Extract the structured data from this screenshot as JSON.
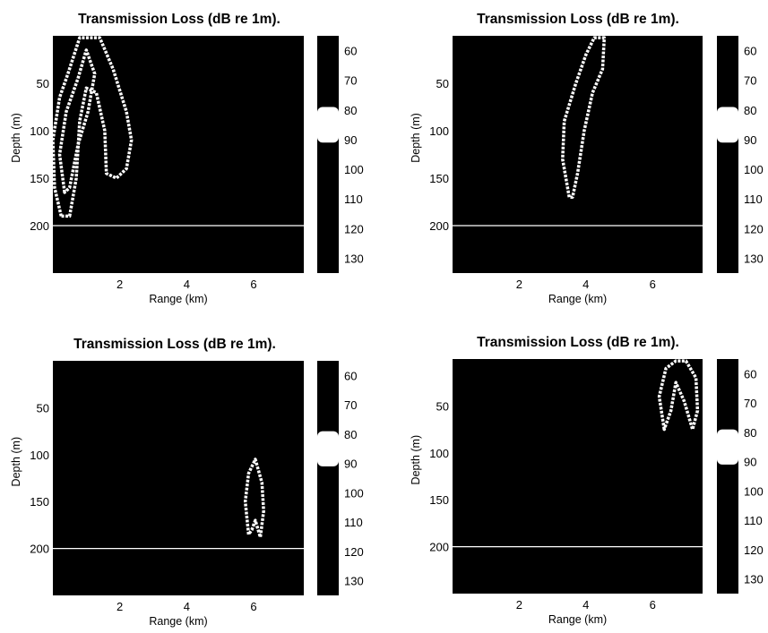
{
  "figure": {
    "panels": [
      {
        "title": "Transmission Loss (dB re 1m)."
      },
      {
        "title": "Transmission Loss (dB re 1m)."
      },
      {
        "title": "Transmission Loss (dB re 1m)."
      },
      {
        "title": "Transmission Loss (dB re 1m)."
      }
    ]
  },
  "colors": {
    "background": "#000000",
    "contour": "#ffffff",
    "seafloor_line": "#ffffff",
    "colorbar_high": "#ffffff"
  },
  "chart_data": [
    {
      "type": "heatmap",
      "title": "Transmission Loss (dB re 1m).",
      "xlabel": "Range (km)",
      "ylabel": "Depth (m)",
      "xlim": [
        0,
        7.5
      ],
      "ylim": [
        250,
        0
      ],
      "xticks": [
        2,
        4,
        6
      ],
      "yticks": [
        50,
        100,
        150,
        200
      ],
      "colorbar_ticks": [
        60,
        70,
        80,
        90,
        100,
        110,
        120,
        130
      ],
      "colorbar_range": [
        55,
        135
      ],
      "seafloor_depth": 200,
      "contour_outlines": [
        [
          [
            0.25,
            190
          ],
          [
            0.05,
            160
          ],
          [
            0.0,
            110
          ],
          [
            0.2,
            65
          ],
          [
            0.45,
            40
          ],
          [
            0.8,
            2
          ],
          [
            1.4,
            2
          ],
          [
            1.8,
            35
          ],
          [
            2.2,
            80
          ],
          [
            2.35,
            110
          ],
          [
            2.2,
            140
          ],
          [
            1.9,
            150
          ],
          [
            1.6,
            145
          ],
          [
            1.55,
            100
          ],
          [
            1.3,
            60
          ],
          [
            1.0,
            55
          ],
          [
            0.8,
            90
          ],
          [
            0.7,
            150
          ],
          [
            0.5,
            190
          ]
        ],
        [
          [
            0.35,
            165
          ],
          [
            0.2,
            125
          ],
          [
            0.4,
            80
          ],
          [
            0.75,
            45
          ],
          [
            1.0,
            15
          ],
          [
            1.25,
            40
          ],
          [
            1.05,
            80
          ],
          [
            0.75,
            115
          ],
          [
            0.5,
            160
          ]
        ]
      ]
    },
    {
      "type": "heatmap",
      "title": "Transmission Loss (dB re 1m).",
      "xlabel": "Range (km)",
      "ylabel": "Depth (m)",
      "xlim": [
        0,
        7.5
      ],
      "ylim": [
        250,
        0
      ],
      "xticks": [
        2,
        4,
        6
      ],
      "yticks": [
        50,
        100,
        150,
        200
      ],
      "colorbar_ticks": [
        60,
        70,
        80,
        90,
        100,
        110,
        120,
        130
      ],
      "colorbar_range": [
        55,
        135
      ],
      "seafloor_depth": 200,
      "contour_outlines": [
        [
          [
            3.5,
            170
          ],
          [
            3.3,
            130
          ],
          [
            3.35,
            90
          ],
          [
            3.7,
            50
          ],
          [
            4.0,
            20
          ],
          [
            4.25,
            2
          ],
          [
            4.55,
            2
          ],
          [
            4.5,
            35
          ],
          [
            4.2,
            60
          ],
          [
            3.95,
            100
          ],
          [
            3.75,
            145
          ],
          [
            3.6,
            170
          ]
        ]
      ]
    },
    {
      "type": "heatmap",
      "title": "Transmission Loss (dB re 1m).",
      "xlabel": "Range (km)",
      "ylabel": "Depth (m)",
      "xlim": [
        0,
        7.5
      ],
      "ylim": [
        250,
        0
      ],
      "xticks": [
        2,
        4,
        6
      ],
      "yticks": [
        50,
        100,
        150,
        200
      ],
      "colorbar_ticks": [
        60,
        70,
        80,
        90,
        100,
        110,
        120,
        130
      ],
      "colorbar_range": [
        55,
        135
      ],
      "seafloor_depth": 200,
      "contour_outlines": [
        [
          [
            5.85,
            185
          ],
          [
            5.75,
            150
          ],
          [
            5.85,
            120
          ],
          [
            6.05,
            105
          ],
          [
            6.25,
            130
          ],
          [
            6.3,
            160
          ],
          [
            6.2,
            188
          ],
          [
            6.05,
            170
          ],
          [
            5.95,
            180
          ]
        ]
      ]
    },
    {
      "type": "heatmap",
      "title": "Transmission Loss (dB re 1m).",
      "xlabel": "Range (km)",
      "ylabel": "Depth (m)",
      "xlim": [
        0,
        7.5
      ],
      "ylim": [
        250,
        0
      ],
      "xticks": [
        2,
        4,
        6
      ],
      "yticks": [
        50,
        100,
        150,
        200
      ],
      "colorbar_ticks": [
        60,
        70,
        80,
        90,
        100,
        110,
        120,
        130
      ],
      "colorbar_range": [
        55,
        135
      ],
      "seafloor_depth": 200,
      "contour_outlines": [
        [
          [
            6.35,
            75
          ],
          [
            6.2,
            40
          ],
          [
            6.4,
            10
          ],
          [
            6.7,
            2
          ],
          [
            7.0,
            2
          ],
          [
            7.3,
            20
          ],
          [
            7.35,
            55
          ],
          [
            7.2,
            75
          ],
          [
            6.95,
            45
          ],
          [
            6.7,
            25
          ],
          [
            6.55,
            55
          ]
        ]
      ]
    }
  ]
}
